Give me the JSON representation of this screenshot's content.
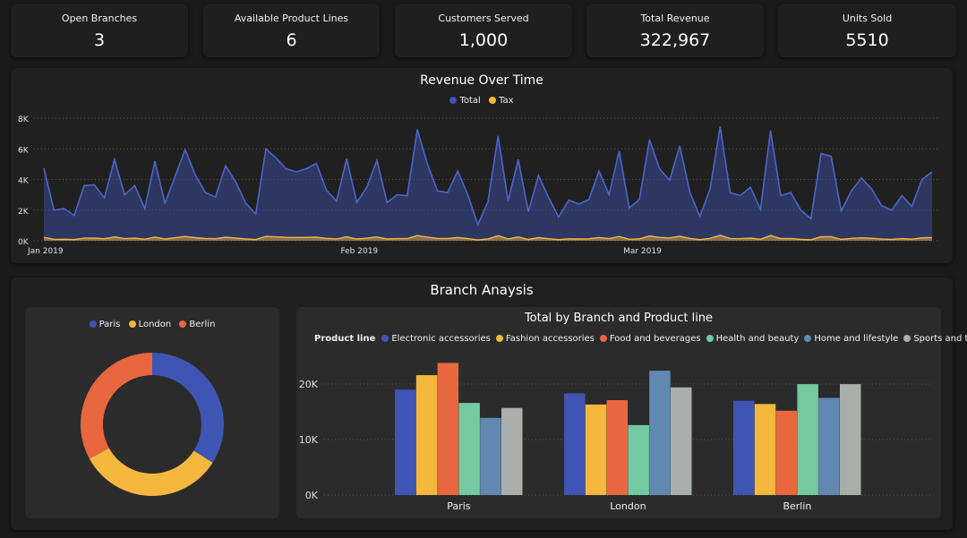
{
  "colors": {
    "total": "#3f55b3",
    "tax": "#f4b83f",
    "paris": "#3f55b3",
    "london": "#f4b83f",
    "berlin": "#e8673f"
  },
  "kpis": [
    {
      "label": "Open Branches",
      "value": "3"
    },
    {
      "label": "Available Product Lines",
      "value": "6"
    },
    {
      "label": "Customers Served",
      "value": "1,000"
    },
    {
      "label": "Total Revenue",
      "value": "322,967"
    },
    {
      "label": "Units Sold",
      "value": "5510"
    }
  ],
  "revenue": {
    "title": "Revenue Over Time",
    "legend": {
      "total": "Total",
      "tax": "Tax"
    }
  },
  "branch": {
    "title": "Branch Anaysis",
    "donut_legend": {
      "paris": "Paris",
      "london": "London",
      "berlin": "Berlin"
    }
  },
  "bars": {
    "title": "Total by Branch and Product line",
    "legend_label": "Product line"
  },
  "chart_data": [
    {
      "type": "area",
      "title": "Revenue Over Time",
      "xlabel": "",
      "ylabel": "",
      "ylim": [
        0,
        8000
      ],
      "yticks": [
        0,
        2000,
        4000,
        6000,
        8000
      ],
      "ytick_labels": [
        "0K",
        "2K",
        "4K",
        "6K",
        "8K"
      ],
      "xtick_labels": [
        {
          "label": "Jan 2019",
          "day": 1
        },
        {
          "label": "Feb 2019",
          "day": 32
        },
        {
          "label": "Mar 2019",
          "day": 60
        }
      ],
      "x": [
        1,
        2,
        3,
        4,
        5,
        6,
        7,
        8,
        9,
        10,
        11,
        12,
        13,
        14,
        15,
        16,
        17,
        18,
        19,
        20,
        21,
        22,
        23,
        24,
        25,
        26,
        27,
        28,
        29,
        30,
        31,
        32,
        33,
        34,
        35,
        36,
        37,
        38,
        39,
        40,
        41,
        42,
        43,
        44,
        45,
        46,
        47,
        48,
        49,
        50,
        51,
        52,
        53,
        54,
        55,
        56,
        57,
        58,
        59,
        60,
        61,
        62,
        63,
        64,
        65,
        66,
        67,
        68,
        69,
        70,
        71,
        72,
        73,
        74,
        75,
        76,
        77,
        78,
        79,
        80,
        81,
        82,
        83,
        84,
        85,
        86,
        87,
        88,
        89
      ],
      "series": [
        {
          "name": "Total",
          "values": [
            4750,
            2000,
            2100,
            1650,
            3600,
            3650,
            2800,
            5300,
            3000,
            3600,
            2100,
            5200,
            2450,
            4200,
            5950,
            4300,
            3150,
            2850,
            4900,
            3850,
            2450,
            1750,
            6000,
            5400,
            4700,
            4500,
            4700,
            5050,
            3300,
            2600,
            5350,
            2500,
            3500,
            5250,
            2500,
            3000,
            2950,
            7250,
            5000,
            3250,
            3150,
            4550,
            3000,
            1050,
            2550,
            6850,
            2600,
            5300,
            1900,
            4250,
            2850,
            1550,
            2650,
            2400,
            2700,
            4550,
            3000,
            5850,
            2150,
            2700,
            6600,
            4700,
            3950,
            6200,
            3150,
            1600,
            3350,
            7450,
            3150,
            2950,
            3500,
            2050,
            7200,
            2950,
            3150,
            2000,
            1450,
            5700,
            5500,
            1950,
            3250,
            4100,
            3400,
            2300,
            2000,
            2950,
            2250,
            4000,
            4500
          ]
        },
        {
          "name": "Tax",
          "values": [
            226,
            95,
            100,
            79,
            171,
            174,
            133,
            252,
            143,
            171,
            100,
            248,
            117,
            200,
            283,
            205,
            150,
            136,
            233,
            183,
            117,
            83,
            286,
            257,
            224,
            214,
            224,
            240,
            157,
            124,
            255,
            119,
            167,
            250,
            119,
            143,
            140,
            345,
            238,
            155,
            150,
            217,
            143,
            50,
            121,
            326,
            124,
            252,
            90,
            202,
            136,
            74,
            126,
            114,
            129,
            217,
            143,
            279,
            102,
            129,
            314,
            224,
            188,
            295,
            150,
            76,
            160,
            355,
            150,
            140,
            167,
            98,
            343,
            140,
            150,
            95,
            69,
            271,
            262,
            93,
            155,
            195,
            162,
            110,
            95,
            140,
            107,
            190,
            214
          ]
        }
      ]
    },
    {
      "type": "pie",
      "title": "",
      "categories": [
        "Paris",
        "London",
        "Berlin"
      ],
      "values": [
        34,
        33,
        33
      ]
    },
    {
      "type": "bar",
      "title": "Total by Branch and Product line",
      "categories": [
        "Paris",
        "London",
        "Berlin"
      ],
      "ylim": [
        0,
        25000
      ],
      "yticks": [
        0,
        10000,
        20000
      ],
      "ytick_labels": [
        "0K",
        "10K",
        "20K"
      ],
      "series": [
        {
          "name": "Electronic accessories",
          "color": "#3f55b3",
          "values": [
            19000,
            18300,
            17000
          ]
        },
        {
          "name": "Fashion accessories",
          "color": "#f4b83f",
          "values": [
            21600,
            16300,
            16400
          ]
        },
        {
          "name": "Food and beverages",
          "color": "#e8673f",
          "values": [
            23800,
            17100,
            15200
          ]
        },
        {
          "name": "Health and beauty",
          "color": "#74c9a1",
          "values": [
            16600,
            12600,
            19980
          ]
        },
        {
          "name": "Home and lifestyle",
          "color": "#6088b0",
          "values": [
            13900,
            22400,
            17500
          ]
        },
        {
          "name": "Sports and travel",
          "color": "#a9aeaa",
          "values": [
            15700,
            19400,
            19990
          ]
        }
      ]
    }
  ]
}
